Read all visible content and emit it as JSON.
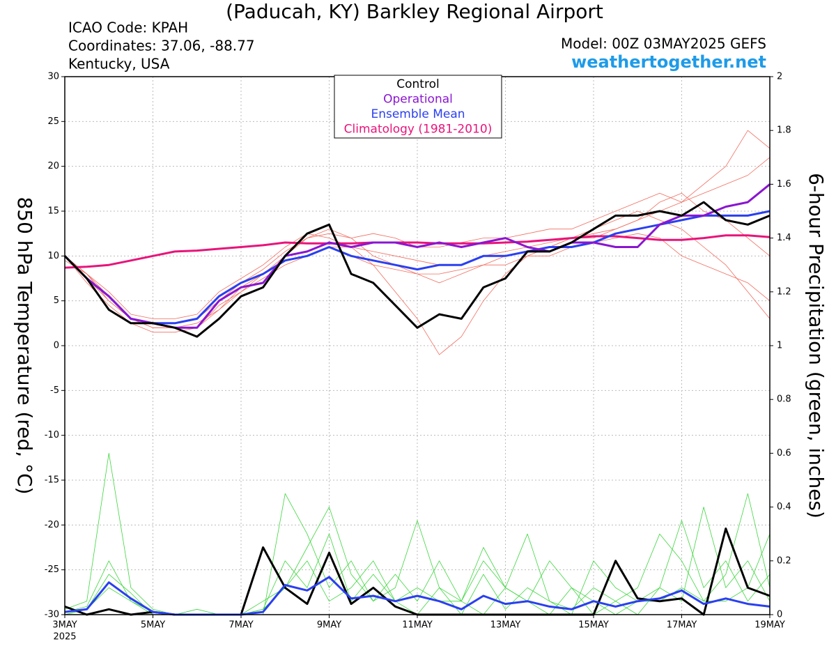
{
  "chart_data": {
    "type": "line",
    "title": "(Paducah, KY) Barkley Regional Airport",
    "station_lines": [
      "ICAO Code: KPAH",
      "Coordinates: 37.06, -88.77",
      "Kentucky, USA"
    ],
    "model": "Model: 00Z 03MAY2025 GEFS",
    "source": "weathertogether.net",
    "ylabel": "850 hPa Temperature (red, °C)",
    "y2label": "6-hour Precipitation (green, inches)",
    "start_year": "2025",
    "x": [
      0,
      0.5,
      1,
      1.5,
      2,
      2.5,
      3,
      3.5,
      4,
      4.5,
      5,
      5.5,
      6,
      6.5,
      7,
      7.5,
      8,
      8.5,
      9,
      9.5,
      10,
      10.5,
      11,
      11.5,
      12,
      12.5,
      13,
      13.5,
      14,
      14.5,
      15,
      15.5,
      16
    ],
    "xlim": [
      0,
      16
    ],
    "xticks": [
      {
        "value": 0,
        "label": "3MAY"
      },
      {
        "value": 2,
        "label": "5MAY"
      },
      {
        "value": 4,
        "label": "7MAY"
      },
      {
        "value": 6,
        "label": "9MAY"
      },
      {
        "value": 8,
        "label": "11MAY"
      },
      {
        "value": 10,
        "label": "13MAY"
      },
      {
        "value": 12,
        "label": "15MAY"
      },
      {
        "value": 14,
        "label": "17MAY"
      },
      {
        "value": 16,
        "label": "19MAY"
      }
    ],
    "ylim": [
      -30,
      30
    ],
    "yticks": [
      30,
      25,
      20,
      15,
      10,
      5,
      0,
      -5,
      -10,
      -15,
      -20,
      -25,
      -30
    ],
    "y2lim": [
      0,
      2
    ],
    "y2ticks": [
      0,
      0.2,
      0.4,
      0.6,
      0.8,
      1,
      1.2,
      1.4,
      1.6,
      1.8,
      2
    ],
    "grid": true,
    "series": [
      {
        "name": "Control",
        "color": "#000000",
        "values": [
          10,
          7.5,
          4,
          2.5,
          2.5,
          2,
          1,
          3,
          5.5,
          6.5,
          10,
          12.5,
          13.5,
          8,
          7,
          4.5,
          2,
          3.5,
          3,
          6.5,
          7.5,
          10.5,
          10.5,
          11.5,
          13,
          14.5,
          14.5,
          15,
          14.5,
          16,
          14,
          13.5,
          14.5
        ]
      },
      {
        "name": "Operational",
        "color": "#8a16d0",
        "values": [
          10,
          7.5,
          5.5,
          3,
          2.5,
          2,
          2,
          5,
          6.5,
          7,
          10,
          10.5,
          11.5,
          11,
          11.5,
          11.5,
          11,
          11.5,
          11,
          11.5,
          12,
          11,
          10.5,
          11.5,
          11.5,
          11,
          11,
          13.5,
          14.5,
          14.5,
          15.5,
          16,
          18
        ]
      },
      {
        "name": "Ensemble Mean",
        "color": "#2a3ff0",
        "values": [
          10,
          7.5,
          5.5,
          3,
          2.5,
          2.5,
          3,
          5.5,
          7,
          8,
          9.5,
          10,
          11,
          10,
          9.5,
          9,
          8.5,
          9,
          9,
          10,
          10,
          10.5,
          11,
          11,
          11.5,
          12.5,
          13,
          13.5,
          14,
          14.5,
          14.5,
          14.5,
          15
        ]
      },
      {
        "name": "Climatology (1981-2010)",
        "color": "#e8147a",
        "values": [
          8.7,
          8.8,
          9,
          9.5,
          10,
          10.5,
          10.6,
          10.8,
          11,
          11.2,
          11.5,
          11.4,
          11.4,
          11.4,
          11.5,
          11.5,
          11.5,
          11.4,
          11.4,
          11.4,
          11.5,
          11.6,
          11.8,
          12,
          12.2,
          12.2,
          12,
          11.8,
          11.8,
          12,
          12.3,
          12.3,
          12.1
        ]
      }
    ],
    "temp_members": [
      {
        "color": "#f26b5e",
        "values": [
          10,
          8,
          5,
          3,
          2,
          2,
          2.5,
          4,
          6.5,
          8,
          10,
          12,
          13,
          12,
          10,
          9,
          8,
          7,
          8,
          9,
          10,
          10.5,
          11,
          12,
          12.5,
          13,
          14,
          15,
          16,
          17,
          18,
          19,
          21
        ]
      },
      {
        "color": "#f26b5e",
        "values": [
          10,
          7,
          4.5,
          2.5,
          1.5,
          1.5,
          2,
          4,
          6,
          7.5,
          9,
          10,
          11,
          11,
          10.5,
          10,
          9.5,
          9,
          9,
          10,
          10.5,
          11,
          11.5,
          12,
          13,
          14,
          15,
          14,
          13,
          11,
          9,
          6,
          3
        ]
      },
      {
        "color": "#f26b5e",
        "values": [
          9.5,
          8,
          6,
          3.5,
          3,
          3,
          3.5,
          6,
          7.5,
          9,
          11,
          12.5,
          12,
          11,
          9,
          6,
          3,
          -1,
          1,
          5,
          8,
          10,
          11,
          12,
          12,
          13,
          14,
          16,
          17,
          15,
          14,
          12,
          10
        ]
      },
      {
        "color": "#f26b5e",
        "values": [
          10,
          7.5,
          5,
          3,
          2.5,
          2.5,
          3,
          5,
          7,
          8.5,
          10.5,
          12,
          12.5,
          12,
          12.5,
          12,
          11,
          11,
          11.5,
          12,
          12,
          12.5,
          13,
          13,
          14,
          15,
          16,
          17,
          16,
          18,
          20,
          24,
          22
        ]
      },
      {
        "color": "#f26b5e",
        "values": [
          10,
          8,
          5.5,
          3,
          2,
          2,
          2,
          4.5,
          6,
          8,
          9.5,
          10,
          11,
          10,
          9,
          8.5,
          8,
          8,
          8.5,
          9,
          9,
          10,
          10,
          11,
          11.5,
          12,
          12.5,
          12,
          10,
          9,
          8,
          7,
          5
        ]
      }
    ],
    "precip_series": [
      {
        "color": "#000000",
        "axis": "y2",
        "values": [
          0.03,
          0,
          0.02,
          0,
          0.01,
          0,
          0,
          0,
          0,
          0.25,
          0.1,
          0.04,
          0.23,
          0.04,
          0.1,
          0.03,
          0,
          0,
          0,
          0,
          0,
          0,
          0,
          0,
          0,
          0.2,
          0.06,
          0.05,
          0.06,
          0,
          0.32,
          0.1,
          0.07
        ]
      },
      {
        "color": "#2a3ff0",
        "axis": "y2",
        "values": [
          0.01,
          0.02,
          0.12,
          0.06,
          0.01,
          0,
          0,
          0,
          0,
          0.01,
          0.11,
          0.09,
          0.14,
          0.06,
          0.07,
          0.05,
          0.07,
          0.05,
          0.02,
          0.07,
          0.04,
          0.05,
          0.03,
          0.02,
          0.05,
          0.03,
          0.05,
          0.06,
          0.09,
          0.04,
          0.06,
          0.04,
          0.03
        ]
      }
    ],
    "precip_members": [
      {
        "color": "#3cd63c",
        "axis": "y2",
        "values": [
          0.02,
          0.05,
          0.6,
          0.1,
          0.02,
          0,
          0,
          0,
          0,
          0.05,
          0.1,
          0.25,
          0.4,
          0.15,
          0.05,
          0.1,
          0.35,
          0.1,
          0.05,
          0.2,
          0.1,
          0.3,
          0.05,
          0.02,
          0.1,
          0.05,
          0,
          0.1,
          0.05,
          0.4,
          0.1,
          0.2,
          0.05
        ]
      },
      {
        "color": "#3cd63c",
        "axis": "y2",
        "values": [
          0,
          0.02,
          0.15,
          0.08,
          0,
          0,
          0.02,
          0,
          0,
          0,
          0.45,
          0.3,
          0.1,
          0.2,
          0.05,
          0.15,
          0.05,
          0.2,
          0.05,
          0,
          0.1,
          0.05,
          0.2,
          0.1,
          0,
          0.05,
          0.1,
          0.3,
          0.2,
          0.05,
          0.15,
          0.45,
          0.1
        ]
      },
      {
        "color": "#3cd63c",
        "axis": "y2",
        "values": [
          0.01,
          0.03,
          0.2,
          0.05,
          0.01,
          0,
          0,
          0,
          0,
          0.02,
          0.2,
          0.1,
          0.3,
          0.05,
          0.15,
          0.05,
          0.1,
          0.05,
          0.05,
          0.25,
          0.1,
          0.05,
          0,
          0.1,
          0.05,
          0,
          0.05,
          0.1,
          0.35,
          0.1,
          0.2,
          0.05,
          0.15
        ]
      },
      {
        "color": "#3cd63c",
        "axis": "y2",
        "values": [
          0,
          0.02,
          0.1,
          0.05,
          0,
          0,
          0,
          0,
          0,
          0.02,
          0.1,
          0.2,
          0.05,
          0.1,
          0.2,
          0.05,
          0,
          0.1,
          0,
          0.15,
          0.02,
          0.1,
          0.05,
          0,
          0.2,
          0.1,
          0.05,
          0.05,
          0.1,
          0.05,
          0.05,
          0.1,
          0.3
        ]
      }
    ]
  }
}
